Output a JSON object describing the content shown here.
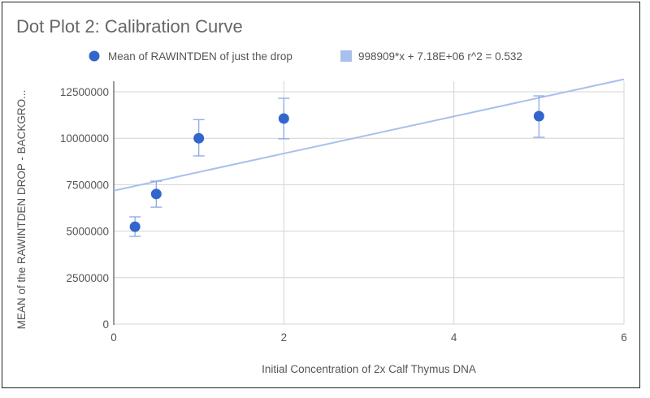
{
  "chart_data": {
    "type": "scatter",
    "title": "Dot Plot 2: Calibration Curve",
    "xlabel": "Initial Concentration of 2x Calf Thymus DNA",
    "ylabel": "MEAN of the RAWINTDEN DROP - BACKGRO...",
    "xlim": [
      0,
      6
    ],
    "ylim": [
      0,
      12500000
    ],
    "xticks": [
      "0",
      "2",
      "4",
      "6"
    ],
    "xtick_values": [
      0,
      2,
      4,
      6
    ],
    "yticks": [
      "0",
      "2500000",
      "5000000",
      "7500000",
      "10000000",
      "12500000"
    ],
    "ytick_values": [
      0,
      2500000,
      5000000,
      7500000,
      10000000,
      12500000
    ],
    "grid": true,
    "legend_position": "top",
    "series": [
      {
        "name": "Mean of RAWINTDEN of just the drop",
        "color": "#3366cc",
        "x": [
          0.25,
          0.5,
          1,
          2,
          5
        ],
        "y": [
          5240000,
          7000000,
          10000000,
          11060000,
          11190000
        ],
        "error_low": [
          4720000,
          6290000,
          9050000,
          9970000,
          10050000
        ],
        "error_high": [
          5770000,
          7690000,
          11000000,
          12150000,
          12280000
        ]
      }
    ],
    "trendline": {
      "name": "998909*x + 7.18E+06 r^2 = 0.532",
      "slope": 998909,
      "intercept": 7180000,
      "r2": 0.532,
      "color": "#a8c0ec"
    }
  }
}
